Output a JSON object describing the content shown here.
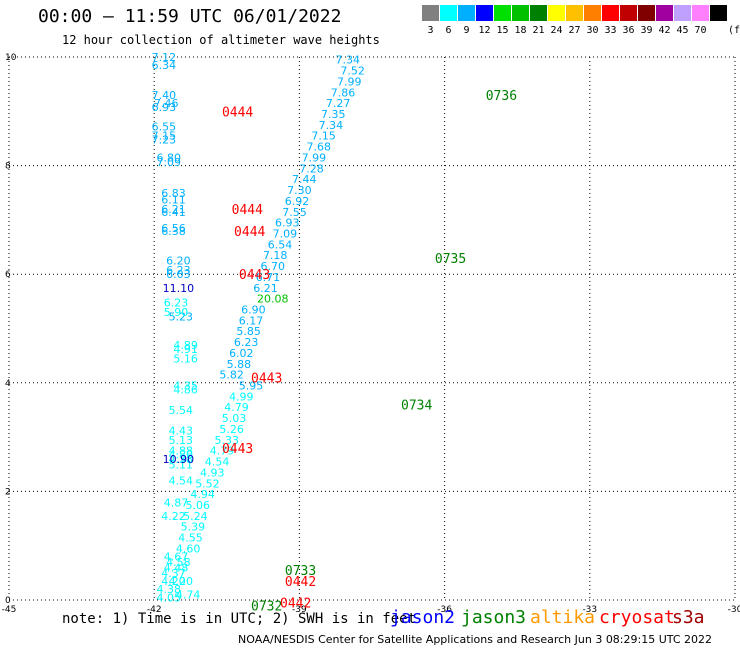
{
  "header": {
    "title": "00:00 – 11:59 UTC 06/01/2022",
    "subtitle": "12 hour collection of altimeter wave heights"
  },
  "color_legend": {
    "unit": "(ft)",
    "bins": [
      {
        "label": "3",
        "color": "#808080"
      },
      {
        "label": "6",
        "color": "#00ffff"
      },
      {
        "label": "9",
        "color": "#00b0ff"
      },
      {
        "label": "12",
        "color": "#0000ff"
      },
      {
        "label": "15",
        "color": "#00e000"
      },
      {
        "label": "18",
        "color": "#00c000"
      },
      {
        "label": "21",
        "color": "#008000"
      },
      {
        "label": "24",
        "color": "#ffff00"
      },
      {
        "label": "27",
        "color": "#ffc000"
      },
      {
        "label": "30",
        "color": "#ff8000"
      },
      {
        "label": "33",
        "color": "#ff0000"
      },
      {
        "label": "36",
        "color": "#c00000"
      },
      {
        "label": "39",
        "color": "#800000"
      },
      {
        "label": "42",
        "color": "#a000a0"
      },
      {
        "label": "45",
        "color": "#c0a0ff"
      },
      {
        "label": "70",
        "color": "#ff80ff"
      },
      {
        "label": "",
        "color": "#000000"
      }
    ]
  },
  "chart_data": {
    "type": "scatter",
    "xlim": [
      -45,
      -30
    ],
    "ylim": [
      0,
      10
    ],
    "x_ticks": [
      -45,
      -42,
      -39,
      -36,
      -33,
      -30
    ],
    "x_tick_labels": [
      "-45",
      "-42",
      "-39",
      "-36",
      "-33",
      "-30"
    ],
    "y_ticks": [
      0,
      2,
      4,
      6,
      8,
      10
    ],
    "y_tick_labels": [
      "0",
      "2",
      "4",
      "6",
      "8",
      "10"
    ],
    "grid": true,
    "series": [
      {
        "name": "",
        "color": "#00b0ff",
        "points": [
          {
            "x": -38.0,
            "y": 9.95,
            "label": "7.34"
          },
          {
            "x": -37.9,
            "y": 9.75,
            "label": "7.52"
          },
          {
            "x": -37.97,
            "y": 9.55,
            "label": "7.99"
          },
          {
            "x": -38.1,
            "y": 9.35,
            "label": "7.86"
          },
          {
            "x": -38.2,
            "y": 9.15,
            "label": "7.27"
          },
          {
            "x": -38.3,
            "y": 8.95,
            "label": "7.35"
          },
          {
            "x": -38.35,
            "y": 8.75,
            "label": "7.34"
          },
          {
            "x": -38.5,
            "y": 8.55,
            "label": "7.15"
          },
          {
            "x": -38.6,
            "y": 8.35,
            "label": "7.68"
          },
          {
            "x": -38.7,
            "y": 8.15,
            "label": "7.99"
          },
          {
            "x": -38.75,
            "y": 7.95,
            "label": "7.28"
          },
          {
            "x": -38.9,
            "y": 7.75,
            "label": "7.44"
          },
          {
            "x": -39.0,
            "y": 7.55,
            "label": "7.30"
          },
          {
            "x": -39.05,
            "y": 7.35,
            "label": "6.92"
          },
          {
            "x": -39.1,
            "y": 7.15,
            "label": "7.55"
          },
          {
            "x": -39.25,
            "y": 6.95,
            "label": "6.93"
          },
          {
            "x": -39.3,
            "y": 6.75,
            "label": "7.09"
          },
          {
            "x": -39.4,
            "y": 6.55,
            "label": "6.54"
          },
          {
            "x": -39.5,
            "y": 6.35,
            "label": "7.18"
          },
          {
            "x": -39.55,
            "y": 6.15,
            "label": "6.70"
          },
          {
            "x": -39.65,
            "y": 5.95,
            "label": "6.71"
          },
          {
            "x": -39.7,
            "y": 5.75,
            "label": "6.21"
          },
          {
            "x": -39.95,
            "y": 5.35,
            "label": "6.90"
          },
          {
            "x": -40.0,
            "y": 5.15,
            "label": "6.17"
          },
          {
            "x": -40.05,
            "y": 4.95,
            "label": "5.85"
          },
          {
            "x": -40.1,
            "y": 4.75,
            "label": "6.23"
          },
          {
            "x": -40.2,
            "y": 4.55,
            "label": "6.02"
          },
          {
            "x": -40.25,
            "y": 4.35,
            "label": "5.88"
          },
          {
            "x": -40.4,
            "y": 4.15,
            "label": "5.82"
          },
          {
            "x": -40.0,
            "y": 3.95,
            "label": "5.95"
          },
          {
            "x": -41.8,
            "y": 10.0,
            "label": "7.12"
          },
          {
            "x": -41.8,
            "y": 9.85,
            "label": "6.34"
          },
          {
            "x": -41.8,
            "y": 9.3,
            "label": "7.40"
          },
          {
            "x": -41.75,
            "y": 9.15,
            "label": "7.46"
          },
          {
            "x": -41.8,
            "y": 9.08,
            "label": "6.93"
          },
          {
            "x": -41.8,
            "y": 8.72,
            "label": "6.55"
          },
          {
            "x": -41.8,
            "y": 8.55,
            "label": "7.15"
          },
          {
            "x": -41.8,
            "y": 8.48,
            "label": "7.23"
          },
          {
            "x": -41.7,
            "y": 8.15,
            "label": "6.80"
          },
          {
            "x": -41.7,
            "y": 8.07,
            "label": "7.09"
          },
          {
            "x": -41.6,
            "y": 7.5,
            "label": "6.83"
          },
          {
            "x": -41.6,
            "y": 7.38,
            "label": "6.11"
          },
          {
            "x": -41.6,
            "y": 7.2,
            "label": "6.21"
          },
          {
            "x": -41.6,
            "y": 7.15,
            "label": "6.41"
          },
          {
            "x": -41.6,
            "y": 6.85,
            "label": "6.56"
          },
          {
            "x": -41.6,
            "y": 6.8,
            "label": "6.38"
          },
          {
            "x": -41.5,
            "y": 6.25,
            "label": "6.20"
          },
          {
            "x": -41.5,
            "y": 6.08,
            "label": "6.23"
          },
          {
            "x": -41.5,
            "y": 6.0,
            "label": "6.03"
          },
          {
            "x": -41.45,
            "y": 5.22,
            "label": "5.23"
          }
        ]
      },
      {
        "name": "",
        "color": "#00ffff",
        "points": [
          {
            "x": -40.2,
            "y": 3.75,
            "label": "4.99"
          },
          {
            "x": -40.3,
            "y": 3.55,
            "label": "4.79"
          },
          {
            "x": -40.35,
            "y": 3.35,
            "label": "5.03"
          },
          {
            "x": -40.4,
            "y": 3.15,
            "label": "5.26"
          },
          {
            "x": -40.5,
            "y": 2.95,
            "label": "5.33"
          },
          {
            "x": -40.6,
            "y": 2.75,
            "label": "4.79"
          },
          {
            "x": -40.7,
            "y": 2.55,
            "label": "4.54"
          },
          {
            "x": -40.8,
            "y": 2.35,
            "label": "4.93"
          },
          {
            "x": -40.9,
            "y": 2.15,
            "label": "5.52"
          },
          {
            "x": -41.0,
            "y": 1.95,
            "label": "4.94"
          },
          {
            "x": -41.1,
            "y": 1.75,
            "label": "5.06"
          },
          {
            "x": -41.15,
            "y": 1.55,
            "label": "5.24"
          },
          {
            "x": -41.2,
            "y": 1.35,
            "label": "5.39"
          },
          {
            "x": -41.25,
            "y": 1.15,
            "label": "4.55"
          },
          {
            "x": -41.3,
            "y": 0.95,
            "label": "4.60"
          },
          {
            "x": -41.55,
            "y": 5.48,
            "label": "6.23"
          },
          {
            "x": -41.55,
            "y": 5.3,
            "label": "5.90"
          },
          {
            "x": -41.35,
            "y": 4.7,
            "label": "4.89"
          },
          {
            "x": -41.35,
            "y": 4.62,
            "label": "4.91"
          },
          {
            "x": -41.35,
            "y": 4.45,
            "label": "5.16"
          },
          {
            "x": -41.35,
            "y": 3.95,
            "label": "4.35"
          },
          {
            "x": -41.35,
            "y": 3.88,
            "label": "4.86"
          },
          {
            "x": -41.45,
            "y": 3.5,
            "label": "5.54"
          },
          {
            "x": -41.45,
            "y": 3.12,
            "label": "4.43"
          },
          {
            "x": -41.45,
            "y": 2.95,
            "label": "5.13"
          },
          {
            "x": -41.45,
            "y": 2.75,
            "label": "4.88"
          },
          {
            "x": -41.45,
            "y": 2.68,
            "label": "4.80"
          },
          {
            "x": -41.45,
            "y": 2.6,
            "label": "4.38"
          },
          {
            "x": -41.45,
            "y": 2.5,
            "label": "5.11"
          },
          {
            "x": -41.45,
            "y": 2.2,
            "label": "4.54"
          },
          {
            "x": -41.55,
            "y": 1.8,
            "label": "4.87"
          },
          {
            "x": -41.6,
            "y": 1.55,
            "label": "4.22"
          },
          {
            "x": -41.55,
            "y": 0.8,
            "label": "4.67"
          },
          {
            "x": -41.5,
            "y": 0.7,
            "label": "4.58"
          },
          {
            "x": -41.55,
            "y": 0.6,
            "label": "4.48"
          },
          {
            "x": -41.6,
            "y": 0.5,
            "label": "4.37"
          },
          {
            "x": -41.6,
            "y": 0.35,
            "label": "4.20"
          },
          {
            "x": -41.45,
            "y": 0.35,
            "label": "4.20"
          },
          {
            "x": -41.7,
            "y": 0.2,
            "label": "4.38"
          },
          {
            "x": -41.7,
            "y": 0.05,
            "label": "4.05"
          },
          {
            "x": -41.3,
            "y": 0.1,
            "label": "4.74"
          }
        ]
      },
      {
        "name": "",
        "color": "#00c000",
        "points": [
          {
            "x": -39.55,
            "y": 5.55,
            "label": "20.08"
          }
        ]
      },
      {
        "name": "",
        "color": "#0000c0",
        "points": [
          {
            "x": -41.5,
            "y": 5.75,
            "label": "11.10"
          },
          {
            "x": -41.5,
            "y": 2.6,
            "label": "10.90"
          }
        ]
      }
    ],
    "time_labels": [
      {
        "x": -35.15,
        "y": 9.3,
        "label": "0736",
        "color": "#008000"
      },
      {
        "x": -36.2,
        "y": 6.3,
        "label": "0735",
        "color": "#008000"
      },
      {
        "x": -36.9,
        "y": 3.6,
        "label": "0734",
        "color": "#008000"
      },
      {
        "x": -39.3,
        "y": 0.55,
        "label": "0733",
        "color": "#008000"
      },
      {
        "x": -40.0,
        "y": -0.1,
        "label": "0732",
        "color": "#008000"
      },
      {
        "x": -40.6,
        "y": 9.0,
        "label": "0444",
        "color": "#ff0000"
      },
      {
        "x": -40.4,
        "y": 7.2,
        "label": "0444",
        "color": "#ff0000"
      },
      {
        "x": -40.35,
        "y": 6.8,
        "label": "0444",
        "color": "#ff0000"
      },
      {
        "x": -40.25,
        "y": 6.0,
        "label": "0443",
        "color": "#ff0000"
      },
      {
        "x": -40.0,
        "y": 4.1,
        "label": "0443",
        "color": "#ff0000"
      },
      {
        "x": -40.6,
        "y": 2.8,
        "label": "0443",
        "color": "#ff0000"
      },
      {
        "x": -39.3,
        "y": 0.35,
        "label": "0442",
        "color": "#ff0000"
      },
      {
        "x": -39.4,
        "y": -0.05,
        "label": "0442",
        "color": "#ff0000"
      }
    ]
  },
  "note": "note: 1) Time is in UTC; 2) SWH is in feet",
  "satellites": [
    {
      "label": "jason2",
      "color": "#0000ff"
    },
    {
      "label": "jason3",
      "color": "#008000"
    },
    {
      "label": "altika",
      "color": "#ff9900"
    },
    {
      "label": "cryosat",
      "color": "#ff0000"
    },
    {
      "label": "s3a",
      "color": "#a00000"
    }
  ],
  "footer": "NOAA/NESDIS Center for Satellite Applications and Research   Jun  3 08:29:15 UTC 2022"
}
